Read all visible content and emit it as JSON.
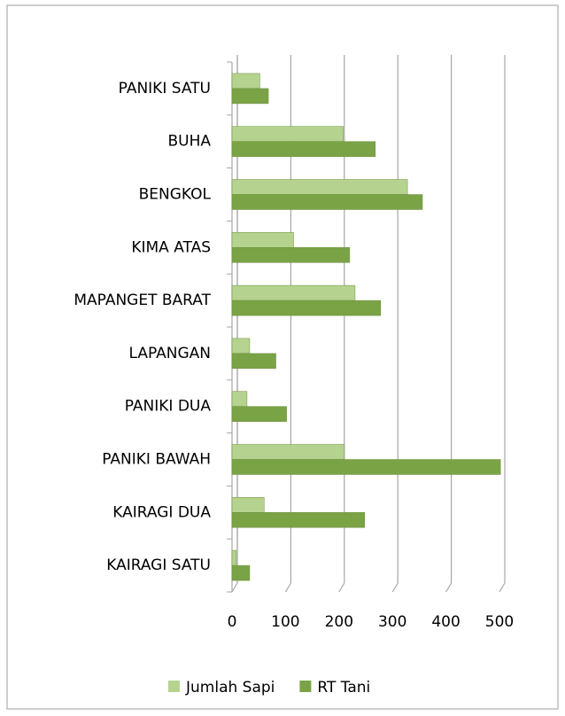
{
  "chart_data": {
    "type": "bar",
    "orientation": "horizontal",
    "categories": [
      "PANIKI SATU",
      "BUHA",
      "BENGKOL",
      "KIMA ATAS",
      "MAPANGET BARAT",
      "LAPANGAN",
      "PANIKI DUA",
      "PANIKI BAWAH",
      "KAIRAGI DUA",
      "KAIRAGI SATU"
    ],
    "series": [
      {
        "name": "Jumlah Sapi",
        "color": "#b5d38f",
        "values": [
          52,
          208,
          328,
          115,
          230,
          33,
          28,
          210,
          60,
          8
        ]
      },
      {
        "name": "RT Tani",
        "color": "#7aa346",
        "values": [
          68,
          268,
          356,
          220,
          278,
          82,
          102,
          502,
          248,
          33
        ]
      }
    ],
    "xlim": [
      0,
      500
    ],
    "xticks": [
      0,
      100,
      200,
      300,
      400,
      500
    ],
    "grid": true,
    "legend": "bottom"
  }
}
